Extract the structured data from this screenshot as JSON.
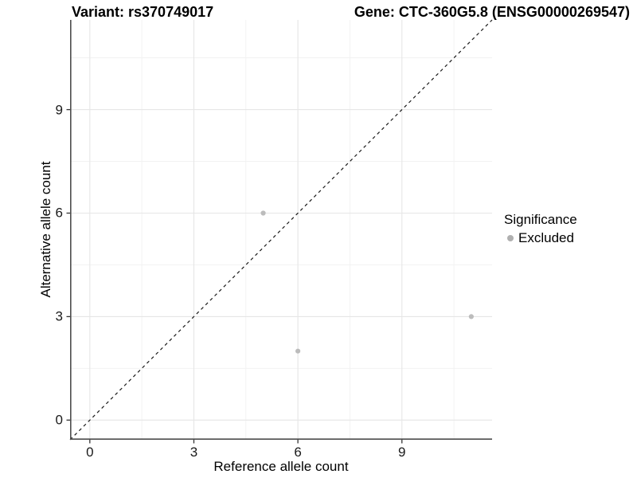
{
  "header": {
    "title_left": "Variant: rs370749017",
    "title_right": "Gene: CTC-360G5.8 (ENSG00000269547)"
  },
  "axes": {
    "x_label": "Reference allele count",
    "y_label": "Alternative allele count"
  },
  "legend": {
    "title": "Significance",
    "items": [
      {
        "label": "Excluded",
        "color": "#b0b0b0"
      }
    ],
    "position": "right"
  },
  "chart_data": {
    "type": "scatter",
    "title": "Variant: rs370749017    Gene: CTC-360G5.8 (ENSG00000269547)",
    "xlabel": "Reference allele count",
    "ylabel": "Alternative allele count",
    "xlim": [
      -0.57,
      11.6
    ],
    "ylim": [
      -0.57,
      11.6
    ],
    "x_ticks": [
      0,
      3,
      6,
      9
    ],
    "y_ticks": [
      0,
      3,
      6,
      9
    ],
    "minor_ticks": [
      1.5,
      4.5,
      7.5,
      10.5
    ],
    "grid": true,
    "legend_position": "right",
    "identity_line": {
      "style": "dashed",
      "slope": 1,
      "intercept": 0,
      "color": "#1a1a1a"
    },
    "series": [
      {
        "name": "Excluded",
        "color": "#bcbcbc",
        "points": [
          [
            5,
            6
          ],
          [
            6,
            2
          ],
          [
            11,
            3
          ]
        ]
      }
    ],
    "style": {
      "panel_background": "#ffffff",
      "major_grid_color": "#e6e6e6",
      "minor_grid_color": "#f1f1f1",
      "axis_line_color": "#4d4d4d",
      "tick_color": "#333333",
      "point_radius": 3.1
    }
  }
}
